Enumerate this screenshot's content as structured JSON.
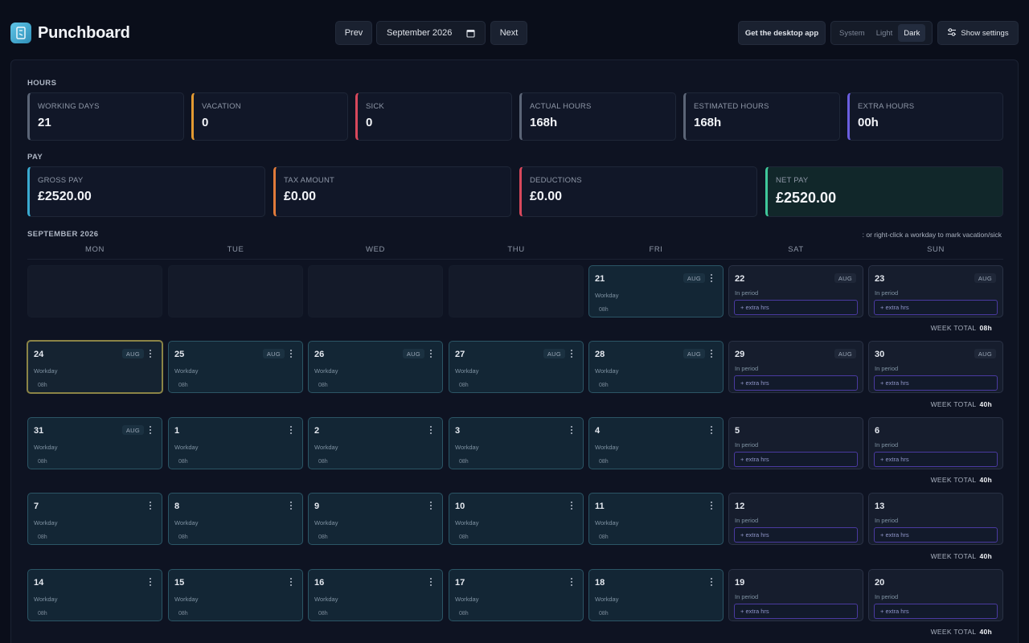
{
  "app": {
    "name": "Punchboard"
  },
  "nav": {
    "prev": "Prev",
    "next": "Next",
    "month": "September 2026"
  },
  "actions": {
    "desktop_app": "Get the desktop app",
    "settings": "Show settings"
  },
  "theme": {
    "options": [
      "System",
      "Light",
      "Dark"
    ],
    "selected": "Dark"
  },
  "hours": {
    "title": "HOURS",
    "cards": [
      {
        "label": "WORKING DAYS",
        "value": "21",
        "color": "#5b6577"
      },
      {
        "label": "VACATION",
        "value": "0",
        "color": "#e39a32"
      },
      {
        "label": "SICK",
        "value": "0",
        "color": "#d8485c"
      },
      {
        "label": "ACTUAL HOURS",
        "value": "168h",
        "color": "#5b6577"
      },
      {
        "label": "ESTIMATED HOURS",
        "value": "168h",
        "color": "#5b6577"
      },
      {
        "label": "EXTRA HOURS",
        "value": "00h",
        "color": "#6a5ee0"
      }
    ]
  },
  "pay": {
    "title": "PAY",
    "cards": [
      {
        "label": "GROSS PAY",
        "value": "£2520.00",
        "color": "#3aaad0"
      },
      {
        "label": "TAX AMOUNT",
        "value": "£0.00",
        "color": "#e07a3a"
      },
      {
        "label": "DEDUCTIONS",
        "value": "£0.00",
        "color": "#d8485c"
      },
      {
        "label": "NET PAY",
        "value": "£2520.00",
        "color": "#3fc79a"
      }
    ]
  },
  "calendar": {
    "title": "SEPTEMBER 2026",
    "hint": ": or right-click a workday to mark vacation/sick",
    "weekdays": [
      "MON",
      "TUE",
      "WED",
      "THU",
      "FRI",
      "SAT",
      "SUN"
    ],
    "week_total_label": "WEEK TOTAL",
    "weeks": [
      {
        "total": "08h",
        "days": [
          {
            "empty": true
          },
          {
            "empty": true
          },
          {
            "empty": true
          },
          {
            "empty": true
          },
          {
            "num": "21",
            "badge": "AUG",
            "sub": "Workday",
            "hrs": "08h"
          },
          {
            "num": "22",
            "badge": "AUG",
            "sub": "In period",
            "weekend": true,
            "extra": "+ extra hrs"
          },
          {
            "num": "23",
            "badge": "AUG",
            "sub": "In period",
            "weekend": true,
            "extra": "+ extra hrs"
          }
        ]
      },
      {
        "total": "40h",
        "days": [
          {
            "num": "24",
            "badge": "AUG",
            "sub": "Workday",
            "hrs": "08h",
            "today": true
          },
          {
            "num": "25",
            "badge": "AUG",
            "sub": "Workday",
            "hrs": "08h"
          },
          {
            "num": "26",
            "badge": "AUG",
            "sub": "Workday",
            "hrs": "08h"
          },
          {
            "num": "27",
            "badge": "AUG",
            "sub": "Workday",
            "hrs": "08h"
          },
          {
            "num": "28",
            "badge": "AUG",
            "sub": "Workday",
            "hrs": "08h"
          },
          {
            "num": "29",
            "badge": "AUG",
            "sub": "In period",
            "weekend": true,
            "extra": "+ extra hrs"
          },
          {
            "num": "30",
            "badge": "AUG",
            "sub": "In period",
            "weekend": true,
            "extra": "+ extra hrs"
          }
        ]
      },
      {
        "total": "40h",
        "days": [
          {
            "num": "31",
            "badge": "AUG",
            "sub": "Workday",
            "hrs": "08h"
          },
          {
            "num": "1",
            "sub": "Workday",
            "hrs": "08h"
          },
          {
            "num": "2",
            "sub": "Workday",
            "hrs": "08h"
          },
          {
            "num": "3",
            "sub": "Workday",
            "hrs": "08h"
          },
          {
            "num": "4",
            "sub": "Workday",
            "hrs": "08h"
          },
          {
            "num": "5",
            "sub": "In period",
            "weekend": true,
            "extra": "+ extra hrs"
          },
          {
            "num": "6",
            "sub": "In period",
            "weekend": true,
            "extra": "+ extra hrs"
          }
        ]
      },
      {
        "total": "40h",
        "days": [
          {
            "num": "7",
            "sub": "Workday",
            "hrs": "08h"
          },
          {
            "num": "8",
            "sub": "Workday",
            "hrs": "08h"
          },
          {
            "num": "9",
            "sub": "Workday",
            "hrs": "08h"
          },
          {
            "num": "10",
            "sub": "Workday",
            "hrs": "08h"
          },
          {
            "num": "11",
            "sub": "Workday",
            "hrs": "08h"
          },
          {
            "num": "12",
            "sub": "In period",
            "weekend": true,
            "extra": "+ extra hrs"
          },
          {
            "num": "13",
            "sub": "In period",
            "weekend": true,
            "extra": "+ extra hrs"
          }
        ]
      },
      {
        "total": "40h",
        "days": [
          {
            "num": "14",
            "sub": "Workday",
            "hrs": "08h"
          },
          {
            "num": "15",
            "sub": "Workday",
            "hrs": "08h"
          },
          {
            "num": "16",
            "sub": "Workday",
            "hrs": "08h"
          },
          {
            "num": "17",
            "sub": "Workday",
            "hrs": "08h"
          },
          {
            "num": "18",
            "sub": "Workday",
            "hrs": "08h"
          },
          {
            "num": "19",
            "sub": "In period",
            "weekend": true,
            "extra": "+ extra hrs"
          },
          {
            "num": "20",
            "sub": "In period",
            "weekend": true,
            "extra": "+ extra hrs"
          }
        ]
      }
    ]
  }
}
